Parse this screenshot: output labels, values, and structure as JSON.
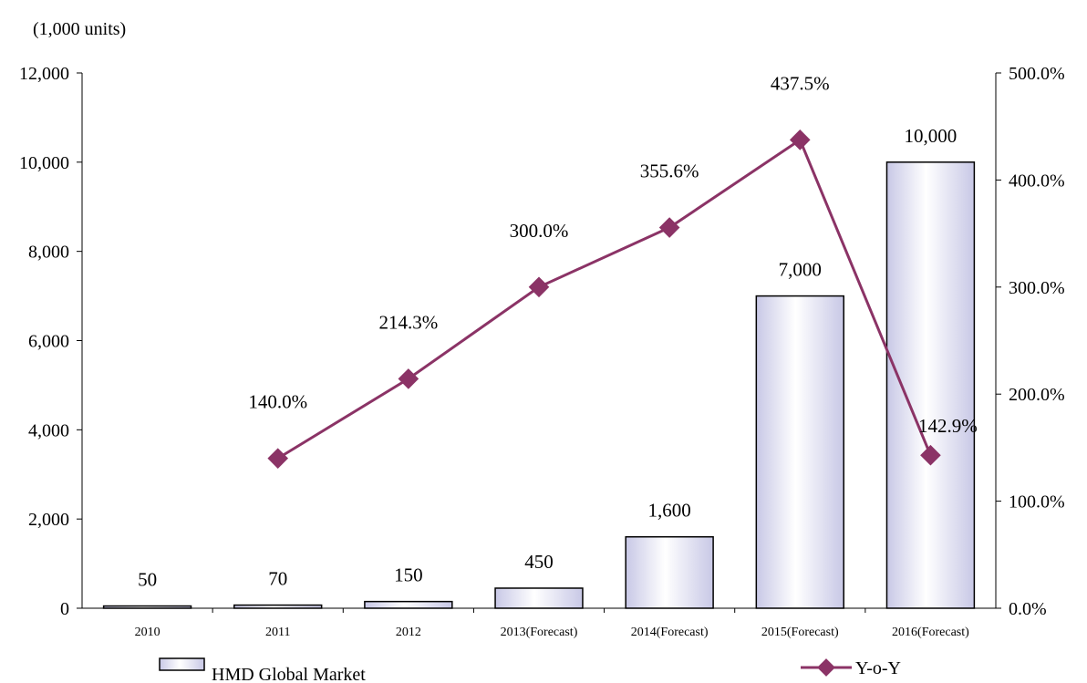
{
  "chart_data": {
    "type": "bar",
    "unit_label": "(1,000 units)",
    "categories": [
      "2010",
      "2011",
      "2012",
      "2013(Forecast)",
      "2014(Forecast)",
      "2015(Forecast)",
      "2016(Forecast)"
    ],
    "series": [
      {
        "name": "HMD Global Market",
        "type": "bar",
        "axis": "left",
        "values": [
          50,
          70,
          150,
          450,
          1600,
          7000,
          10000
        ],
        "labels": [
          "50",
          "70",
          "150",
          "450",
          "1,600",
          "7,000",
          "10,000"
        ]
      },
      {
        "name": "Y-o-Y",
        "type": "line",
        "axis": "right",
        "color": "#8b3366",
        "values": [
          null,
          140.0,
          214.3,
          300.0,
          355.6,
          437.5,
          142.9
        ],
        "labels": [
          "",
          "140.0%",
          "214.3%",
          "300.0%",
          "355.6%",
          "437.5%",
          "142.9%"
        ]
      }
    ],
    "y_left": {
      "ylim": [
        0,
        12000
      ],
      "ticks": [
        0,
        2000,
        4000,
        6000,
        8000,
        10000,
        12000
      ],
      "tick_labels": [
        "0",
        "2,000",
        "4,000",
        "6,000",
        "8,000",
        "10,000",
        "12,000"
      ]
    },
    "y_right": {
      "ylim": [
        0,
        500
      ],
      "ticks": [
        0,
        100,
        200,
        300,
        400,
        500
      ],
      "tick_labels": [
        "0.0%",
        "100.0%",
        "200.0%",
        "300.0%",
        "400.0%",
        "500.0%"
      ]
    },
    "grid": false,
    "legend_position": "bottom"
  }
}
